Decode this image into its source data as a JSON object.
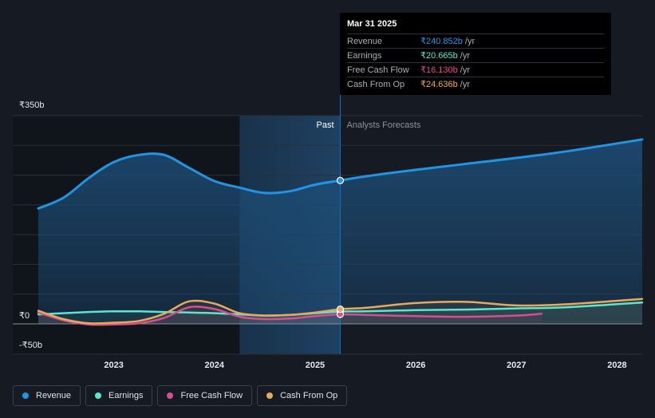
{
  "tooltip": {
    "date": "Mar 31 2025",
    "rows": [
      {
        "name": "Revenue",
        "value": "₹240.852b",
        "unit": "/yr",
        "color": "#2394e4"
      },
      {
        "name": "Earnings",
        "value": "₹20.665b",
        "unit": "/yr",
        "color": "#5ce6cf"
      },
      {
        "name": "Free Cash Flow",
        "value": "₹16.130b",
        "unit": "/yr",
        "color": "#d64f8e"
      },
      {
        "name": "Cash From Op",
        "value": "₹24.636b",
        "unit": "/yr",
        "color": "#e9a95a"
      }
    ]
  },
  "legend": [
    {
      "label": "Revenue",
      "color": "#2394e4"
    },
    {
      "label": "Earnings",
      "color": "#5ce6cf"
    },
    {
      "label": "Free Cash Flow",
      "color": "#d64f8e"
    },
    {
      "label": "Cash From Op",
      "color": "#e9a95a"
    }
  ],
  "chart_data": {
    "type": "line",
    "y_tick_labels": [
      "₹350b",
      "₹0",
      "-₹50b"
    ],
    "ylim": [
      -50,
      350
    ],
    "xlim": [
      2022.25,
      2028.25
    ],
    "x_ticks": [
      2023,
      2024,
      2025,
      2026,
      2027,
      2028
    ],
    "past_label": "Past",
    "forecast_label": "Analysts Forecasts",
    "divider_x": 2025.25,
    "highlight_start": 2024.25,
    "grid": true,
    "series": [
      {
        "name": "Revenue",
        "color": "#2394e4",
        "points": [
          [
            2022.25,
            194
          ],
          [
            2022.5,
            212
          ],
          [
            2022.75,
            245
          ],
          [
            2023,
            272
          ],
          [
            2023.25,
            284
          ],
          [
            2023.5,
            284
          ],
          [
            2023.75,
            262
          ],
          [
            2024,
            240
          ],
          [
            2024.25,
            229
          ],
          [
            2024.5,
            220
          ],
          [
            2024.75,
            223
          ],
          [
            2025,
            234
          ],
          [
            2025.25,
            241
          ],
          [
            2025.5,
            248
          ],
          [
            2026,
            259
          ],
          [
            2026.5,
            269
          ],
          [
            2027,
            279
          ],
          [
            2027.5,
            290
          ],
          [
            2028.25,
            310
          ]
        ]
      },
      {
        "name": "Earnings",
        "color": "#5ce6cf",
        "points": [
          [
            2022.25,
            16
          ],
          [
            2022.5,
            18
          ],
          [
            2022.75,
            20
          ],
          [
            2023,
            21
          ],
          [
            2023.25,
            21
          ],
          [
            2023.5,
            20
          ],
          [
            2023.75,
            19
          ],
          [
            2024,
            18
          ],
          [
            2024.25,
            16
          ],
          [
            2024.5,
            14
          ],
          [
            2024.75,
            15
          ],
          [
            2025,
            18
          ],
          [
            2025.25,
            20.665
          ],
          [
            2025.5,
            21
          ],
          [
            2026,
            23
          ],
          [
            2026.5,
            24
          ],
          [
            2027,
            26
          ],
          [
            2027.5,
            28
          ],
          [
            2028.25,
            36
          ]
        ]
      },
      {
        "name": "Free Cash Flow",
        "color": "#d64f8e",
        "points": [
          [
            2022.25,
            19
          ],
          [
            2022.5,
            6
          ],
          [
            2022.75,
            -1
          ],
          [
            2023,
            -1
          ],
          [
            2023.25,
            1
          ],
          [
            2023.5,
            10
          ],
          [
            2023.75,
            28
          ],
          [
            2024,
            25
          ],
          [
            2024.25,
            12
          ],
          [
            2024.5,
            8
          ],
          [
            2024.75,
            9
          ],
          [
            2025,
            13
          ],
          [
            2025.25,
            16.13
          ],
          [
            2025.5,
            15
          ],
          [
            2026,
            13
          ],
          [
            2026.5,
            12
          ],
          [
            2027,
            14
          ],
          [
            2027.25,
            17
          ]
        ]
      },
      {
        "name": "Cash From Op",
        "color": "#e9a95a",
        "points": [
          [
            2022.25,
            22
          ],
          [
            2022.5,
            8
          ],
          [
            2022.75,
            1
          ],
          [
            2023,
            2
          ],
          [
            2023.25,
            5
          ],
          [
            2023.5,
            17
          ],
          [
            2023.75,
            38
          ],
          [
            2024,
            34
          ],
          [
            2024.25,
            18
          ],
          [
            2024.5,
            14
          ],
          [
            2024.75,
            15
          ],
          [
            2025,
            19
          ],
          [
            2025.25,
            24.636
          ],
          [
            2025.5,
            27
          ],
          [
            2026,
            35
          ],
          [
            2026.5,
            37
          ],
          [
            2027,
            31
          ],
          [
            2027.5,
            33
          ],
          [
            2028.25,
            42
          ]
        ]
      }
    ]
  }
}
